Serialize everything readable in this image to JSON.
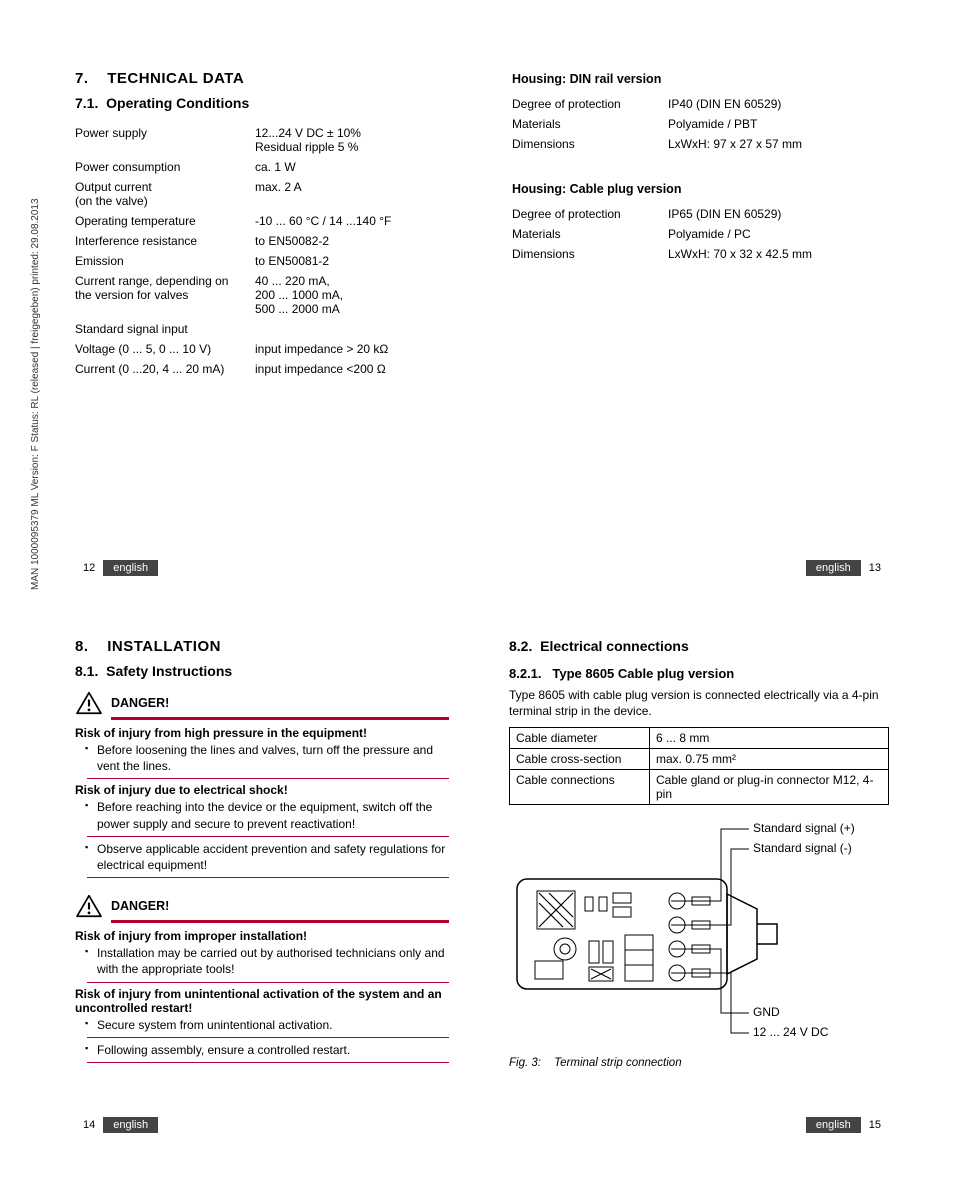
{
  "side_text": "MAN 1000095379 ML Version: F  Status: RL (released | freigegeben)  printed: 29.08.2013",
  "s7": {
    "num": "7.",
    "title": "TECHNICAL DATA",
    "sub_num": "7.1.",
    "sub_title": "Operating Conditions",
    "rows": [
      {
        "label": "Power supply",
        "value": "12...24 V DC ± 10%\nResidual ripple 5 %"
      },
      {
        "label": "Power consumption",
        "value": "ca. 1 W"
      },
      {
        "label": "Output current\n(on the valve)",
        "value": "max. 2 A"
      },
      {
        "label": "Operating temperature",
        "value": "-10 ... 60 °C / 14 ...140 °F"
      },
      {
        "label": "Interference resistance",
        "value": "to EN50082-2"
      },
      {
        "label": "Emission",
        "value": "to EN50081-2"
      },
      {
        "label": "Current range, depending on the version for valves",
        "value": "40 ... 220 mA,\n200 ... 1000 mA,\n500 ... 2000 mA"
      },
      {
        "label": "Standard signal input",
        "value": ""
      },
      {
        "label": "Voltage (0 ... 5, 0 ... 10 V)",
        "value": "input impedance > 20 kΩ"
      },
      {
        "label": "Current (0 ...20, 4 ... 20 mA)",
        "value": "input impedance <200 Ω"
      }
    ]
  },
  "housing_din": {
    "heading": "Housing: DIN rail version",
    "rows": [
      {
        "label": "Degree of protection",
        "value": "IP40 (DIN EN 60529)"
      },
      {
        "label": "Materials",
        "value": "Polyamide / PBT"
      },
      {
        "label": "Dimensions",
        "value": "LxWxH: 97 x 27 x 57 mm"
      }
    ]
  },
  "housing_cable": {
    "heading": "Housing: Cable plug version",
    "rows": [
      {
        "label": "Degree of protection",
        "value": "IP65 (DIN EN 60529)"
      },
      {
        "label": "Materials",
        "value": "Polyamide / PC"
      },
      {
        "label": "Dimensions",
        "value": "LxWxH: 70 x 32 x 42.5 mm"
      }
    ]
  },
  "footer": {
    "lang": "english",
    "p12": "12",
    "p13": "13",
    "p14": "14",
    "p15": "15"
  },
  "s8": {
    "num": "8.",
    "title": "INSTALLATION",
    "sub_num": "8.1.",
    "sub_title": "Safety Instructions"
  },
  "danger1": {
    "label": "DANGER!",
    "risk1_title": "Risk of injury from high pressure in the equipment!",
    "risk1_item1": "Before loosening the lines and valves, turn off the pressure and vent the lines.",
    "risk2_title": "Risk of injury due to electrical shock!",
    "risk2_item1": "Before reaching into the device or the equipment, switch off the power supply and secure to prevent reactivation!",
    "risk2_item2": "Observe applicable accident prevention and safety regulations for electrical equipment!"
  },
  "danger2": {
    "label": "DANGER!",
    "risk1_title": "Risk of injury from improper installation!",
    "risk1_item1": "Installation may be carried out by authorised technicians only and with the appropriate tools!",
    "risk2_title": "Risk of injury from unintentional activation of the system and an uncontrolled restart!",
    "risk2_item1": "Secure system from unintentional activation.",
    "risk2_item2": "Following assembly, ensure a controlled restart."
  },
  "s82": {
    "num": "8.2.",
    "title": "Electrical connections",
    "sub_num": "8.2.1.",
    "sub_title": "Type 8605 Cable plug version",
    "intro": "Type 8605 with cable plug version is connected electrically via a 4-pin terminal strip in the device.",
    "table": [
      {
        "k": "Cable diameter",
        "v": "6 ... 8 mm"
      },
      {
        "k": "Cable cross-section",
        "v": "max. 0.75 mm²"
      },
      {
        "k": "Cable connections",
        "v": "Cable gland or plug-in connector M12, 4-pin"
      }
    ]
  },
  "diagram": {
    "callouts": {
      "sig_plus": "Standard signal (+)",
      "sig_minus": "Standard signal (-)",
      "gnd": "GND",
      "vdc": "12 ... 24 V DC"
    },
    "fig_num": "Fig. 3:",
    "fig_text": "Terminal strip connection"
  },
  "colors": {
    "accent": "#b3002d",
    "footer_bg": "#444444"
  }
}
